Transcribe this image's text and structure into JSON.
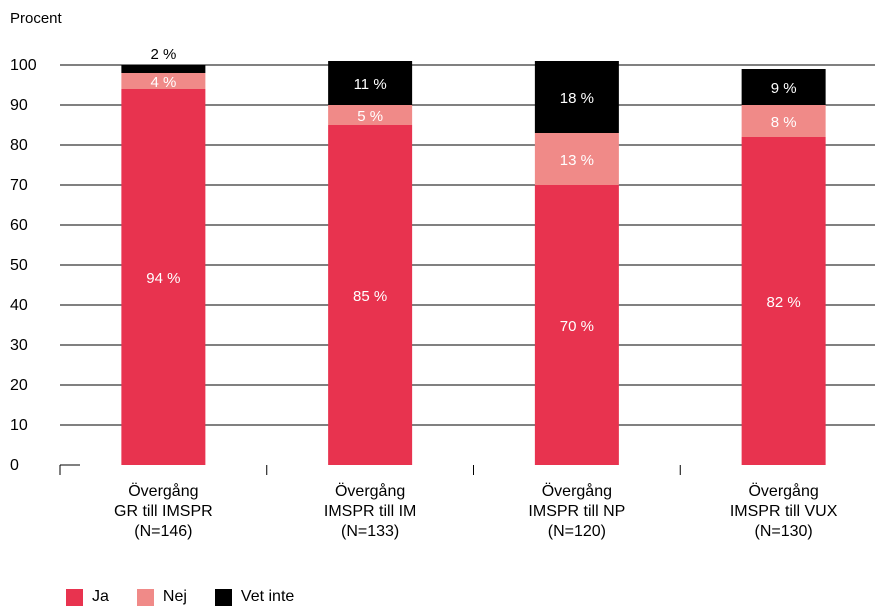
{
  "chart_data": {
    "type": "bar",
    "stacked": true,
    "ylabel": "Procent",
    "ylim": [
      0,
      100
    ],
    "yticks": [
      0,
      10,
      20,
      30,
      40,
      50,
      60,
      70,
      80,
      90,
      100
    ],
    "grid": true,
    "legend_position": "bottom-left",
    "categories": [
      [
        "Övergång",
        "GR till IMSPR",
        "(N=146)"
      ],
      [
        "Övergång",
        "IMSPR till IM",
        "(N=133)"
      ],
      [
        "Övergång",
        "IMSPR till NP",
        "(N=120)"
      ],
      [
        "Övergång",
        "IMSPR till VUX",
        "(N=130)"
      ]
    ],
    "series": [
      {
        "name": "Ja",
        "color": "#e8334f",
        "label_color": "#ffffff",
        "values": [
          94,
          85,
          70,
          82
        ],
        "labels": [
          "94 %",
          "85 %",
          "70 %",
          "82 %"
        ]
      },
      {
        "name": "Nej",
        "color": "#f08a88",
        "label_color": "#ffffff",
        "values": [
          4,
          5,
          13,
          8
        ],
        "labels": [
          "4 %",
          "5 %",
          "13 %",
          "8 %"
        ]
      },
      {
        "name": "Vet inte",
        "color": "#000000",
        "label_color": "#ffffff",
        "values": [
          2,
          11,
          18,
          9
        ],
        "labels": [
          "2 %",
          "11 %",
          "18 %",
          "9 %"
        ]
      }
    ]
  }
}
